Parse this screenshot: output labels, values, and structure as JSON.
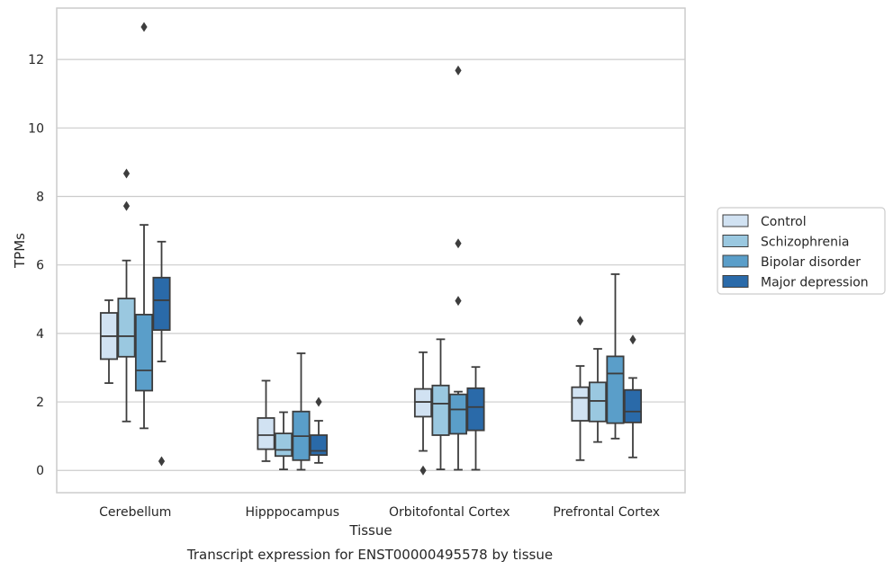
{
  "chart_data": {
    "type": "box",
    "xlabel": "Tissue",
    "ylabel": "TPMs",
    "caption": "Transcript expression for ENST00000495578 by tissue",
    "ylim": [
      -0.65,
      13.5
    ],
    "yticks": [
      0,
      2,
      4,
      6,
      8,
      10,
      12
    ],
    "grid": "horizontal",
    "legend_position": "right",
    "categories": [
      "Cerebellum",
      "Hipppocampus",
      "Orbitofontal Cortex",
      "Prefrontal Cortex"
    ],
    "series": [
      {
        "name": "Control",
        "color": "#d1e2f2",
        "boxes": [
          {
            "whislo": 2.55,
            "q1": 3.25,
            "med": 3.92,
            "q3": 4.6,
            "whishi": 4.97,
            "fliers": []
          },
          {
            "whislo": 0.27,
            "q1": 0.62,
            "med": 1.03,
            "q3": 1.53,
            "whishi": 2.62,
            "fliers": []
          },
          {
            "whislo": 0.57,
            "q1": 1.57,
            "med": 2.0,
            "q3": 2.38,
            "whishi": 3.45,
            "fliers": [
              0.0
            ]
          },
          {
            "whislo": 0.3,
            "q1": 1.45,
            "med": 2.12,
            "q3": 2.43,
            "whishi": 3.05,
            "fliers": [
              4.37
            ]
          }
        ]
      },
      {
        "name": "Schizophrenia",
        "color": "#9ac8e0",
        "boxes": [
          {
            "whislo": 1.43,
            "q1": 3.32,
            "med": 3.92,
            "q3": 5.02,
            "whishi": 6.13,
            "fliers": [
              7.72,
              8.67
            ]
          },
          {
            "whislo": 0.03,
            "q1": 0.42,
            "med": 0.6,
            "q3": 1.08,
            "whishi": 1.7,
            "fliers": []
          },
          {
            "whislo": 0.03,
            "q1": 1.03,
            "med": 1.95,
            "q3": 2.48,
            "whishi": 3.83,
            "fliers": []
          },
          {
            "whislo": 0.83,
            "q1": 1.43,
            "med": 2.03,
            "q3": 2.57,
            "whishi": 3.55,
            "fliers": []
          }
        ]
      },
      {
        "name": "Bipolar disorder",
        "color": "#5a9ec9",
        "boxes": [
          {
            "whislo": 1.23,
            "q1": 2.33,
            "med": 2.92,
            "q3": 4.55,
            "whishi": 7.17,
            "fliers": [
              12.95
            ]
          },
          {
            "whislo": 0.02,
            "q1": 0.3,
            "med": 1.0,
            "q3": 1.72,
            "whishi": 3.42,
            "fliers": []
          },
          {
            "whislo": 0.02,
            "q1": 1.07,
            "med": 1.78,
            "q3": 2.22,
            "whishi": 2.3,
            "fliers": [
              4.95,
              6.63,
              11.68
            ]
          },
          {
            "whislo": 0.93,
            "q1": 1.38,
            "med": 2.83,
            "q3": 3.33,
            "whishi": 5.73,
            "fliers": []
          }
        ]
      },
      {
        "name": "Major depression",
        "color": "#2a6aa9",
        "boxes": [
          {
            "whislo": 3.18,
            "q1": 4.1,
            "med": 4.97,
            "q3": 5.63,
            "whishi": 6.68,
            "fliers": [
              0.27
            ]
          },
          {
            "whislo": 0.22,
            "q1": 0.45,
            "med": 0.57,
            "q3": 1.03,
            "whishi": 1.45,
            "fliers": [
              2.0
            ]
          },
          {
            "whislo": 0.02,
            "q1": 1.17,
            "med": 1.85,
            "q3": 2.4,
            "whishi": 3.02,
            "fliers": []
          },
          {
            "whislo": 0.38,
            "q1": 1.4,
            "med": 1.72,
            "q3": 2.35,
            "whishi": 2.7,
            "fliers": [
              3.82
            ]
          }
        ]
      }
    ]
  }
}
